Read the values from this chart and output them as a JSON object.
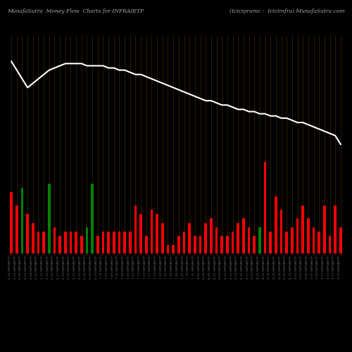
{
  "title_left": "MunafaSutra  Money Flow  Charts for INFRAIETF",
  "title_right": "(Iciciprumc -  Iciciinfra) MunafaSutra.com",
  "background_color": "#000000",
  "line_color": "#ffffff",
  "bar_colors": [
    "red",
    "red",
    "green",
    "red",
    "red",
    "red",
    "red",
    "green",
    "red",
    "red",
    "red",
    "red",
    "red",
    "red",
    "green",
    "green",
    "red",
    "red",
    "red",
    "red",
    "red",
    "red",
    "red",
    "red",
    "red",
    "red",
    "red",
    "red",
    "red",
    "red",
    "red",
    "red",
    "red",
    "red",
    "red",
    "red",
    "red",
    "red",
    "red",
    "red",
    "red",
    "red",
    "red",
    "red",
    "red",
    "red",
    "green",
    "red",
    "red",
    "red",
    "red",
    "red",
    "red",
    "red",
    "red",
    "red",
    "red",
    "red",
    "red",
    "red",
    "red",
    "red"
  ],
  "bar_heights": [
    0.28,
    0.22,
    0.3,
    0.18,
    0.14,
    0.1,
    0.1,
    0.32,
    0.12,
    0.08,
    0.1,
    0.1,
    0.1,
    0.08,
    0.12,
    0.32,
    0.08,
    0.1,
    0.1,
    0.1,
    0.1,
    0.1,
    0.1,
    0.22,
    0.18,
    0.08,
    0.2,
    0.18,
    0.14,
    0.04,
    0.04,
    0.08,
    0.1,
    0.14,
    0.08,
    0.08,
    0.14,
    0.16,
    0.12,
    0.08,
    0.08,
    0.1,
    0.14,
    0.16,
    0.12,
    0.08,
    0.12,
    0.42,
    0.1,
    0.26,
    0.2,
    0.1,
    0.12,
    0.16,
    0.22,
    0.16,
    0.12,
    0.1,
    0.22,
    0.08,
    0.22,
    0.12
  ],
  "line_values": [
    0.88,
    0.84,
    0.8,
    0.76,
    0.78,
    0.8,
    0.82,
    0.84,
    0.85,
    0.86,
    0.87,
    0.87,
    0.87,
    0.87,
    0.86,
    0.86,
    0.86,
    0.86,
    0.85,
    0.85,
    0.84,
    0.84,
    0.83,
    0.82,
    0.82,
    0.81,
    0.8,
    0.79,
    0.78,
    0.77,
    0.76,
    0.75,
    0.74,
    0.73,
    0.72,
    0.71,
    0.7,
    0.7,
    0.69,
    0.68,
    0.68,
    0.67,
    0.66,
    0.66,
    0.65,
    0.65,
    0.64,
    0.64,
    0.63,
    0.63,
    0.62,
    0.62,
    0.61,
    0.6,
    0.6,
    0.59,
    0.58,
    0.57,
    0.56,
    0.55,
    0.54,
    0.5
  ],
  "x_labels": [
    "6-01 INFRAIETF",
    "6-03 INFRAIETF",
    "6-05 INFRAIETF",
    "6-07 INFRAIETF",
    "6-08 INFRAIETF",
    "6-10 INFRAIETF",
    "6-12 INFRAIETF",
    "6-14 INFRAIETF",
    "6-15 INFRAIETF",
    "6-17 INFRAIETF",
    "6-19 INFRAIETF",
    "6-21 INFRAIETF",
    "6-22 INFRAIETF",
    "6-24 INFRAIETF",
    "6-26 INFRAIETF",
    "6-28 INFRAIETF",
    "6-29 INFRAIETF",
    "7-01 INFRAIETF",
    "7-03 INFRAIETF",
    "7-05 INFRAIETF",
    "7-06 INFRAIETF",
    "7-08 INFRAIETF",
    "7-10 INFRAIETF",
    "7-12 INFRAIETF",
    "7-13 INFRAIETF",
    "7-15 INFRAIETF",
    "7-17 INFRAIETF",
    "7-19 INFRAIETF",
    "7-20 INFRAIETF",
    "7-22 INFRAIETF",
    "7-24 INFRAIETF",
    "7-26 INFRAIETF",
    "7-27 INFRAIETF",
    "7-29 INFRAIETF",
    "7-31 INFRAIETF",
    "8-02 INFRAIETF",
    "8-03 INFRAIETF",
    "8-05 INFRAIETF",
    "8-07 INFRAIETF",
    "8-09 INFRAIETF",
    "8-10 INFRAIETF",
    "8-12 INFRAIETF",
    "8-14 INFRAIETF",
    "8-16 INFRAIETF",
    "8-17 INFRAIETF",
    "8-19 INFRAIETF",
    "8-21 INFRAIETF",
    "8-23 INFRAIETF",
    "8-24 INFRAIETF",
    "8-26 INFRAIETF",
    "8-28 INFRAIETF",
    "8-30 INFRAIETF",
    "8-31 INFRAIETF",
    "9-02 INFRAIETF",
    "9-04 INFRAIETF",
    "9-06 INFRAIETF",
    "9-07 INFRAIETF",
    "9-09 INFRAIETF",
    "9-11 INFRAIETF",
    "9-13 INFRAIETF",
    "9-14 INFRAIETF",
    "9-16 INFRAIETF"
  ],
  "grid_line_color": "#3a2800",
  "ylim": [
    0,
    1.0
  ],
  "bar_width": 0.5
}
